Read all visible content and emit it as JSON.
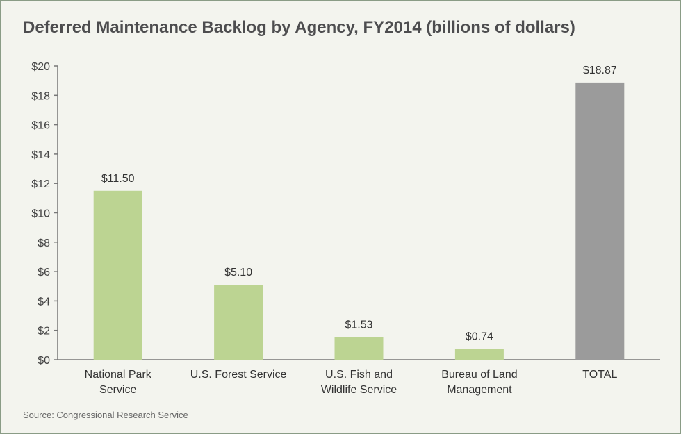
{
  "chart_data": {
    "type": "bar",
    "title": "Deferred Maintenance Backlog by Agency, FY2014 (billions of dollars)",
    "categories": [
      [
        "National Park",
        "Service"
      ],
      [
        "U.S. Forest Service"
      ],
      [
        "U.S. Fish and",
        "Wildlife Service"
      ],
      [
        "Bureau of Land",
        "Management"
      ],
      [
        "TOTAL"
      ]
    ],
    "values": [
      11.5,
      5.1,
      1.53,
      0.74,
      18.87
    ],
    "data_labels": [
      "$11.50",
      "$5.10",
      "$1.53",
      "$0.74",
      "$18.87"
    ],
    "bar_colors": [
      "#bcd492",
      "#bcd492",
      "#bcd492",
      "#bcd492",
      "#9b9b9b"
    ],
    "yticks": [
      "$0",
      "$2",
      "$4",
      "$6",
      "$8",
      "$10",
      "$12",
      "$14",
      "$16",
      "$18",
      "$20"
    ],
    "ylim": [
      0,
      20
    ],
    "xlabel": "",
    "ylabel": "",
    "grid": false,
    "source": "Source: Congressional Research Service"
  }
}
